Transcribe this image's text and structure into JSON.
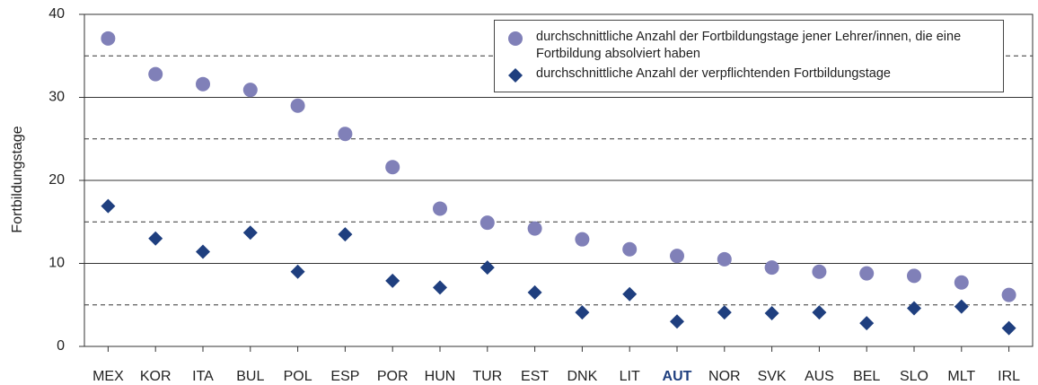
{
  "chart_data": {
    "type": "scatter",
    "y_label": "Fortbildungstage",
    "categories": [
      "MEX",
      "KOR",
      "ITA",
      "BUL",
      "POL",
      "ESP",
      "POR",
      "HUN",
      "TUR",
      "EST",
      "DNK",
      "LIT",
      "AUT",
      "NOR",
      "SVK",
      "AUS",
      "BEL",
      "SLO",
      "MLT",
      "IRL"
    ],
    "highlight_categories": [
      "AUT"
    ],
    "highlight_color": "#1f3f7f",
    "series": [
      {
        "name": "durchschnittliche Anzahl der Fortbildungstage jener Lehrer/innen, die eine Fortbildung absolviert haben",
        "color": "#8080b8",
        "marker": "circle",
        "values": [
          37.1,
          32.8,
          31.6,
          30.9,
          29.0,
          25.6,
          21.6,
          16.6,
          14.9,
          14.2,
          12.9,
          11.7,
          10.9,
          10.5,
          9.5,
          9.0,
          8.8,
          8.5,
          7.7,
          6.2
        ]
      },
      {
        "name": "durchschnittliche Anzahl der verpflichtenden Fortbildungstage",
        "color": "#1f3f7f",
        "marker": "diamond",
        "values": [
          16.9,
          13.0,
          11.4,
          13.7,
          9.0,
          13.5,
          7.9,
          7.1,
          9.5,
          6.5,
          4.1,
          6.3,
          3.0,
          4.1,
          4.0,
          4.1,
          2.8,
          4.6,
          4.8,
          2.2
        ]
      }
    ],
    "ylim": [
      0,
      40
    ],
    "yticks": [
      0,
      10,
      20,
      30,
      40
    ],
    "grid": true,
    "minor_grid": [
      5,
      15,
      25,
      35
    ],
    "legend": "upper right"
  }
}
